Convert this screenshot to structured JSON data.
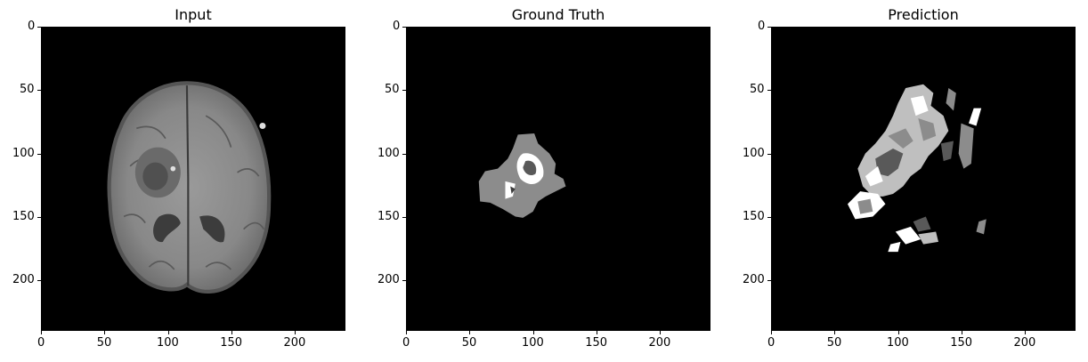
{
  "figure": {
    "panels": [
      {
        "title": "Input",
        "kind": "mri"
      },
      {
        "title": "Ground Truth",
        "kind": "gt"
      },
      {
        "title": "Prediction",
        "kind": "pred"
      }
    ],
    "axis": {
      "x_ticks": [
        "0",
        "50",
        "100",
        "150",
        "200"
      ],
      "y_ticks": [
        "0",
        "50",
        "100",
        "150",
        "200"
      ],
      "range": [
        0,
        240
      ]
    },
    "colors": {
      "background": "#000000",
      "label_1": "#595959",
      "label_2": "#8c8c8c",
      "label_3": "#bfbfbf",
      "label_4": "#ffffff"
    }
  }
}
